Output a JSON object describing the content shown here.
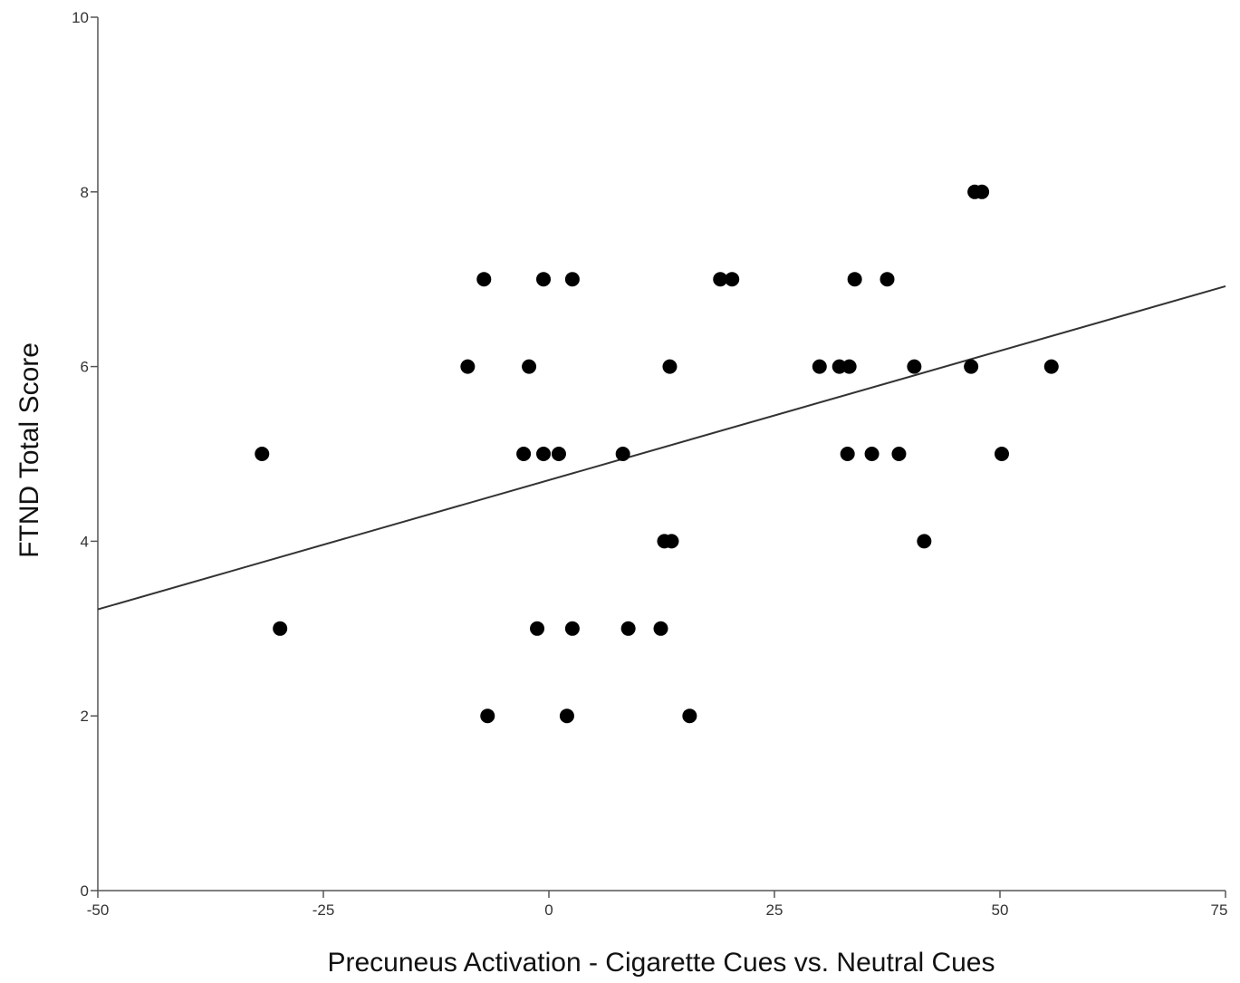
{
  "chart_data": {
    "type": "scatter",
    "xlabel": "Precuneus Activation - Cigarette Cues vs. Neutral Cues",
    "ylabel": "FTND Total Score",
    "xlim": [
      -50,
      75
    ],
    "ylim": [
      0,
      10
    ],
    "xticks": [
      -50,
      -25,
      0,
      25,
      50,
      75
    ],
    "yticks": [
      0,
      2,
      4,
      6,
      8,
      10
    ],
    "x_tick_labels": [
      "-50",
      "-25",
      "0",
      "25",
      "50",
      "75"
    ],
    "y_tick_labels": [
      "0",
      "2",
      "4",
      "6",
      "8",
      "10"
    ],
    "grid": false,
    "point_color": "#000000",
    "fit_line": {
      "type": "linear",
      "x": [
        -50,
        75
      ],
      "y": [
        3.22,
        6.92
      ]
    },
    "points": [
      {
        "x": -31.8,
        "y": 5
      },
      {
        "x": -29.8,
        "y": 3
      },
      {
        "x": -9.0,
        "y": 6
      },
      {
        "x": -7.2,
        "y": 7
      },
      {
        "x": -6.8,
        "y": 2
      },
      {
        "x": -2.8,
        "y": 5
      },
      {
        "x": -2.2,
        "y": 6
      },
      {
        "x": -1.3,
        "y": 3
      },
      {
        "x": -0.6,
        "y": 7
      },
      {
        "x": -0.6,
        "y": 5
      },
      {
        "x": 1.1,
        "y": 5
      },
      {
        "x": 2.0,
        "y": 2
      },
      {
        "x": 2.6,
        "y": 7
      },
      {
        "x": 2.6,
        "y": 3
      },
      {
        "x": 8.2,
        "y": 5
      },
      {
        "x": 8.8,
        "y": 3
      },
      {
        "x": 12.4,
        "y": 3
      },
      {
        "x": 12.8,
        "y": 4
      },
      {
        "x": 13.4,
        "y": 6
      },
      {
        "x": 13.6,
        "y": 4
      },
      {
        "x": 15.6,
        "y": 2
      },
      {
        "x": 19.0,
        "y": 7
      },
      {
        "x": 20.3,
        "y": 7
      },
      {
        "x": 30.0,
        "y": 6
      },
      {
        "x": 32.2,
        "y": 6
      },
      {
        "x": 33.1,
        "y": 5
      },
      {
        "x": 33.3,
        "y": 6
      },
      {
        "x": 33.9,
        "y": 7
      },
      {
        "x": 35.8,
        "y": 5
      },
      {
        "x": 37.5,
        "y": 7
      },
      {
        "x": 38.8,
        "y": 5
      },
      {
        "x": 40.5,
        "y": 6
      },
      {
        "x": 41.6,
        "y": 4
      },
      {
        "x": 46.8,
        "y": 6
      },
      {
        "x": 47.2,
        "y": 8
      },
      {
        "x": 48.0,
        "y": 8
      },
      {
        "x": 50.2,
        "y": 5
      },
      {
        "x": 55.7,
        "y": 6
      }
    ]
  }
}
